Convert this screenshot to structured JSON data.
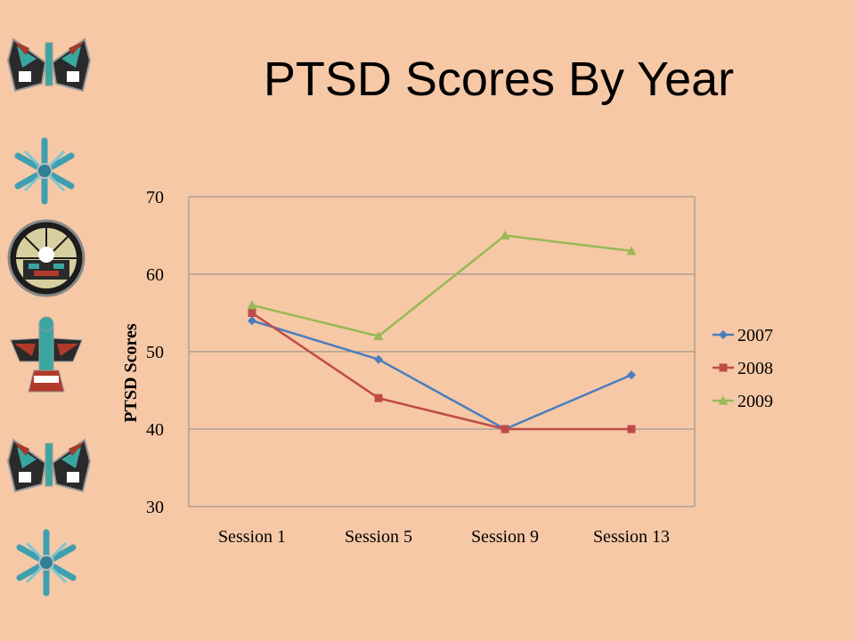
{
  "slide": {
    "title": "PTSD Scores By Year"
  },
  "decorations": [
    {
      "name": "butterfly-inlay-icon"
    },
    {
      "name": "snowflake-inlay-icon"
    },
    {
      "name": "sunface-inlay-icon"
    },
    {
      "name": "thunderbird-inlay-icon"
    },
    {
      "name": "butterfly-inlay-icon"
    },
    {
      "name": "snowflake-inlay-icon"
    }
  ],
  "colors": {
    "background": "#f6c8a6",
    "gridline": "#8c8c8c"
  },
  "chart_data": {
    "type": "line",
    "title": "",
    "xlabel": "",
    "ylabel": "PTSD Scores",
    "categories": [
      "Session 1",
      "Session 5",
      "Session 9",
      "Session 13"
    ],
    "ylim": [
      30,
      70
    ],
    "yticks": [
      30,
      40,
      50,
      60,
      70
    ],
    "grid": true,
    "legend_position": "right",
    "series": [
      {
        "name": "2007",
        "values": [
          54,
          49,
          40,
          47
        ],
        "color": "#4a7ebb",
        "marker": "diamond"
      },
      {
        "name": "2008",
        "values": [
          55,
          44,
          40,
          40
        ],
        "color": "#be4b48",
        "marker": "square"
      },
      {
        "name": "2009",
        "values": [
          56,
          52,
          65,
          63
        ],
        "color": "#98b954",
        "marker": "triangle"
      }
    ]
  }
}
